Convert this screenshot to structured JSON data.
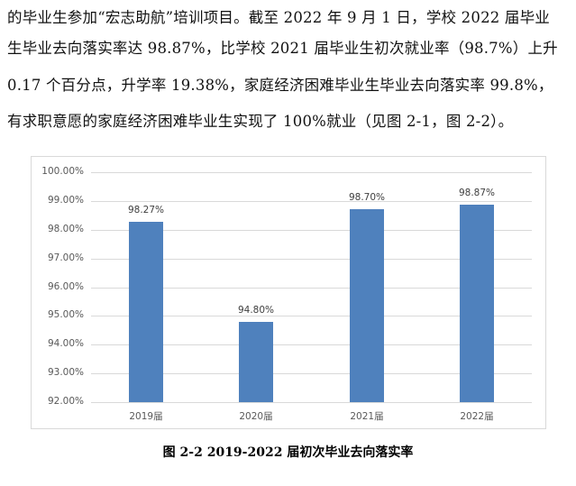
{
  "paragraph": {
    "lines": [
      "的毕业生参加“宏志助航”培训项目。截至 2022 年 9 月 1 日，学校 2022 届毕业",
      "生毕业去向落实率达 98.87%，比学校 2021 届毕业生初次就业率（98.7%）上升",
      "0.17 个百分点，升学率 19.38%，家庭经济困难毕业生毕业去向落实率 99.8%，",
      "有求职意愿的家庭经济困难毕业生实现了 100%就业（见图 2-1，图 2-2）。"
    ]
  },
  "figure": {
    "caption": "图 2-2 2019-2022 届初次毕业去向落实率"
  },
  "colors": {
    "bar": "#4f81bd",
    "grid": "#d9d9d9",
    "axis_text": "#595959"
  },
  "chart_data": {
    "type": "bar",
    "title": "",
    "xlabel": "",
    "ylabel": "",
    "categories": [
      "2019届",
      "2020届",
      "2021届",
      "2022届"
    ],
    "values": [
      98.27,
      94.8,
      98.7,
      98.87
    ],
    "data_labels": [
      "98.27%",
      "94.80%",
      "98.70%",
      "98.87%"
    ],
    "ylim": [
      92,
      100
    ],
    "yticks": [
      "100.00%",
      "99.00%",
      "98.00%",
      "97.00%",
      "96.00%",
      "95.00%",
      "94.00%",
      "93.00%",
      "92.00%"
    ],
    "grid": true,
    "legend": null,
    "caption": "图 2-2 2019-2022 届初次毕业去向落实率"
  }
}
